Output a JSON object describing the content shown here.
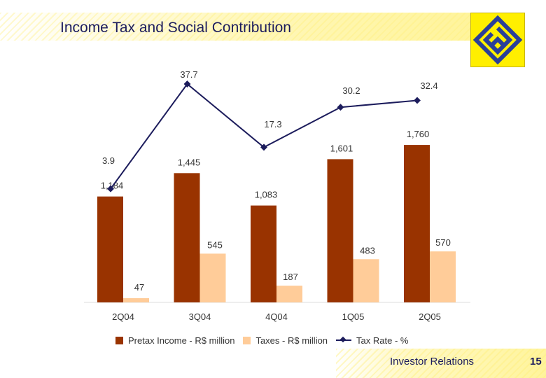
{
  "header": {
    "title": "Income Tax and Social Contribution"
  },
  "colors": {
    "pretax": "#993300",
    "taxes": "#ffcc99",
    "tax_rate": "#1c1c5c",
    "accent": "#fff200"
  },
  "chart_data": {
    "type": "bar",
    "categories": [
      "2Q04",
      "3Q04",
      "4Q04",
      "1Q05",
      "2Q05"
    ],
    "series": [
      {
        "name": "Pretax Income - R$ million",
        "type": "bar",
        "values": [
          1184,
          1445,
          1083,
          1601,
          1760
        ],
        "labels": [
          "1,184",
          "1,445",
          "1,083",
          "1,601",
          "1,760"
        ]
      },
      {
        "name": "Taxes - R$ million",
        "type": "bar",
        "values": [
          47,
          545,
          187,
          483,
          570
        ],
        "labels": [
          "47",
          "545",
          "187",
          "483",
          "570"
        ]
      },
      {
        "name": "Tax Rate - %",
        "type": "line",
        "values": [
          3.9,
          37.7,
          17.3,
          30.2,
          32.4
        ],
        "labels": [
          "3.9",
          "37.7",
          "17.3",
          "30.2",
          "32.4"
        ]
      }
    ],
    "legend": "bottom",
    "grid": false
  },
  "legend": {
    "pretax_label": "Pretax Income - R$ million",
    "taxes_label": "Taxes - R$ million",
    "rate_label": "Tax Rate - %"
  },
  "footer": {
    "text": "Investor Relations",
    "page": "15"
  }
}
